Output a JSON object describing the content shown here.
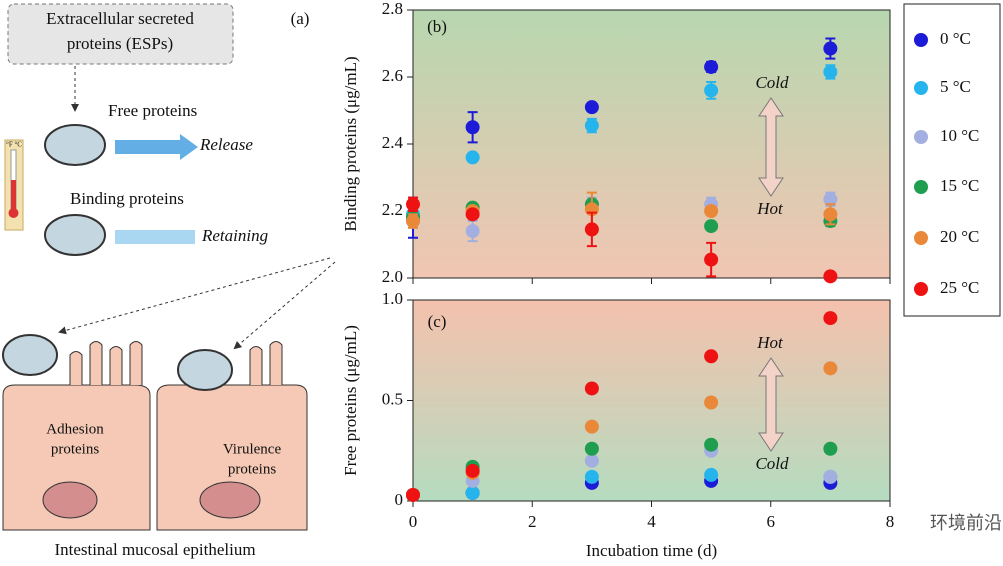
{
  "diagram": {
    "panel": "(a)",
    "box": [
      "Extracellular secreted",
      "proteins (ESPs)"
    ],
    "free": "Free proteins",
    "release": "Release",
    "binding": "Binding proteins",
    "retaining": "Retaining",
    "thermo": "°F °C",
    "adhesion": [
      "Adhesion",
      "proteins"
    ],
    "virulence": [
      "Virulence",
      "proteins"
    ],
    "epithelium": "Intestinal mucosal epithelium"
  },
  "watermark": "环境前沿",
  "chart_data": [
    {
      "type": "scatter",
      "ylabel": "Binding proteins (μg/mL)",
      "annotations": [
        "(b)",
        "Cold",
        "Hot"
      ],
      "x": [
        0,
        1,
        3,
        5,
        7
      ],
      "xlim": [
        0,
        8
      ],
      "xticks": [
        0,
        2,
        4,
        6,
        8
      ],
      "ylim": [
        2.0,
        2.8
      ],
      "yticks": [
        {
          "value": 2,
          "label": "2.0"
        },
        2.2,
        2.4,
        2.6,
        2.8
      ],
      "series": [
        {
          "name": "0 °C",
          "color": "#1b1bd8",
          "values": [
            2.18,
            2.45,
            2.51,
            2.63,
            2.685
          ],
          "errors": [
            0.06,
            0.045,
            0.01,
            0.015,
            0.03
          ]
        },
        {
          "name": "5 °C",
          "color": "#25b5ec",
          "values": [
            2.19,
            2.36,
            2.455,
            2.56,
            2.615
          ],
          "errors": [
            0.01,
            0.01,
            0.02,
            0.025,
            0.02
          ]
        },
        {
          "name": "10 °C",
          "color": "#a3afe0",
          "values": [
            2.17,
            2.14,
            2.22,
            2.22,
            2.235
          ],
          "errors": [
            0.02,
            0.03,
            0.02,
            0.02,
            0.02
          ]
        },
        {
          "name": "15 °C",
          "color": "#1f9e4f",
          "values": [
            2.18,
            2.21,
            2.22,
            2.155,
            2.17
          ],
          "errors": [
            0.01,
            0.01,
            0.01,
            0.01,
            0.015
          ]
        },
        {
          "name": "20 °C",
          "color": "#ea883a",
          "values": [
            2.17,
            2.2,
            2.205,
            2.2,
            2.19
          ],
          "errors": [
            0.02,
            0.01,
            0.05,
            0.01,
            0.03
          ]
        },
        {
          "name": "25 °C",
          "color": "#ee1212",
          "values": [
            2.22,
            2.19,
            2.145,
            2.055,
            2.005
          ],
          "errors": [
            0.02,
            0.01,
            0.05,
            0.05,
            0.01
          ]
        }
      ]
    },
    {
      "type": "scatter",
      "ylabel": "Free proteins (μg/mL)",
      "xlabel": "Incubation time (d)",
      "annotations": [
        "(c)",
        "Hot",
        "Cold"
      ],
      "x": [
        0,
        1,
        3,
        5,
        7
      ],
      "xlim": [
        0,
        8
      ],
      "xticks": [
        0,
        2,
        4,
        6,
        8
      ],
      "ylim": [
        0,
        1.0
      ],
      "yticks": [
        0,
        0.5,
        {
          "value": 1,
          "label": "1.0"
        }
      ],
      "series": [
        {
          "color": "#1b1bd8",
          "values": [
            0.03,
            0.04,
            0.09,
            0.1,
            0.09
          ]
        },
        {
          "color": "#25b5ec",
          "values": [
            0.03,
            0.04,
            0.12,
            0.13,
            0.12
          ]
        },
        {
          "color": "#a3afe0",
          "values": [
            0.03,
            0.1,
            0.2,
            0.25,
            0.12
          ]
        },
        {
          "color": "#1f9e4f",
          "values": [
            0.03,
            0.17,
            0.26,
            0.28,
            0.26
          ]
        },
        {
          "color": "#ea883a",
          "values": [
            0.03,
            0.14,
            0.37,
            0.49,
            0.66
          ]
        },
        {
          "color": "#ee1212",
          "values": [
            0.03,
            0.15,
            0.56,
            0.72,
            0.91
          ]
        }
      ]
    }
  ]
}
